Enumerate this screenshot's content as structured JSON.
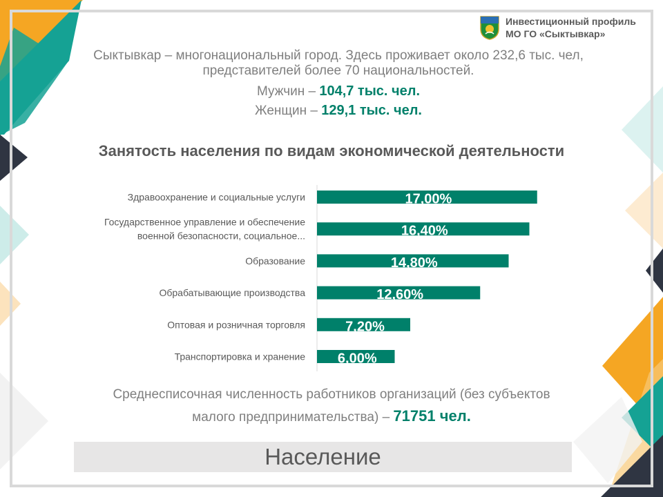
{
  "header": {
    "line1": "Инвестиционный профиль",
    "line2": "МО ГО «Сыктывкар»"
  },
  "intro": {
    "line1": "Сыктывкар – многонациональный город. Здесь проживает около 232,6 тыс. чел,",
    "line2": "представителей более 70 национальностей."
  },
  "men": {
    "label": "Мужчин – ",
    "value": "104,7 тыс. чел."
  },
  "women": {
    "label": "Женщин – ",
    "value": "129,1 тыс. чел."
  },
  "chart_data": {
    "type": "bar",
    "orientation": "horizontal",
    "title": "Занятость населения по видам экономической деятельности",
    "categories": [
      [
        "Здравоохранение и социальные услуги"
      ],
      [
        "Государственное управление и обеспечение",
        "военной безопасности, социальное..."
      ],
      [
        "Образование"
      ],
      [
        "Обрабатывающие производства"
      ],
      [
        "Оптовая и розничная торговля"
      ],
      [
        "Транспортировка и хранение"
      ]
    ],
    "values": [
      17.0,
      16.4,
      14.8,
      12.6,
      7.2,
      6.0
    ],
    "data_labels": [
      "17,00%",
      "16,40%",
      "14,80%",
      "12,60%",
      "7,20%",
      "6,00%"
    ],
    "xlim": [
      0,
      20
    ],
    "bar_color": "#00806a",
    "grid": false,
    "legend": "none"
  },
  "bottom": {
    "line1": "Среднесписочная численность работников организаций (без субъектов",
    "line2": "малого предпринимательства) – ",
    "value": "71751 чел."
  },
  "banner": {
    "title": "Население"
  },
  "colors": {
    "teal": "#15a294",
    "orange": "#f5a623",
    "dark": "#2f3542",
    "light_teal": "#cdece9",
    "light_orange": "#fce3bd",
    "accent_text": "#00806a"
  },
  "icons": {
    "crest": "coat-of-arms-icon"
  }
}
